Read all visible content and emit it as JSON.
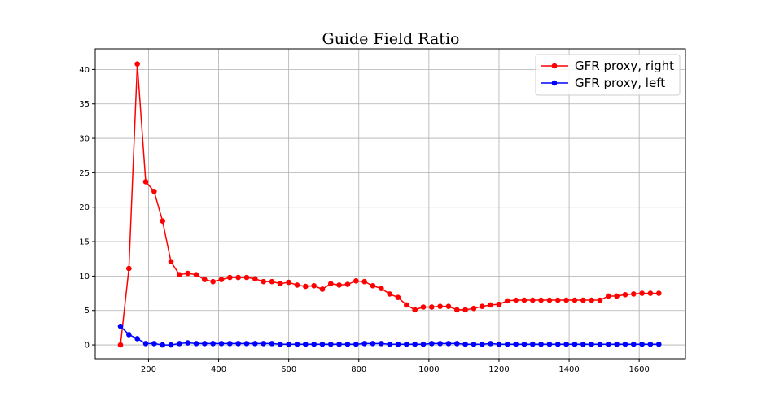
{
  "chart_data": {
    "type": "line",
    "title": "Guide Field Ratio",
    "xlabel": "",
    "ylabel": "",
    "xlim": [
      48,
      1732
    ],
    "ylim": [
      -2,
      43
    ],
    "xticks": [
      200,
      400,
      600,
      800,
      1000,
      1200,
      1400,
      1600
    ],
    "yticks": [
      0,
      5,
      10,
      15,
      20,
      25,
      30,
      35,
      40
    ],
    "grid": true,
    "legend": "top-right",
    "series": [
      {
        "name": "GFR proxy, right",
        "color": "#ff0000",
        "x": [
          120,
          144,
          168,
          192,
          216,
          240,
          264,
          288,
          312,
          336,
          360,
          384,
          408,
          432,
          456,
          480,
          504,
          528,
          552,
          576,
          600,
          624,
          648,
          672,
          696,
          720,
          744,
          768,
          792,
          816,
          840,
          864,
          888,
          912,
          936,
          960,
          984,
          1008,
          1032,
          1056,
          1080,
          1104,
          1128,
          1152,
          1176,
          1200,
          1224,
          1248,
          1272,
          1296,
          1320,
          1344,
          1368,
          1392,
          1416,
          1440,
          1464,
          1488,
          1512,
          1536,
          1560,
          1584,
          1608,
          1632,
          1656
        ],
        "y": [
          0.0,
          11.1,
          40.8,
          23.7,
          22.3,
          18.0,
          12.1,
          10.2,
          10.4,
          10.2,
          9.5,
          9.2,
          9.5,
          9.8,
          9.8,
          9.8,
          9.6,
          9.2,
          9.2,
          8.9,
          9.1,
          8.7,
          8.5,
          8.6,
          8.1,
          8.9,
          8.7,
          8.8,
          9.3,
          9.2,
          8.6,
          8.2,
          7.4,
          6.9,
          5.8,
          5.1,
          5.5,
          5.5,
          5.6,
          5.6,
          5.1,
          5.1,
          5.3,
          5.6,
          5.8,
          5.9,
          6.4,
          6.5,
          6.5,
          6.5,
          6.5,
          6.5,
          6.5,
          6.5,
          6.5,
          6.5,
          6.5,
          6.5,
          7.1,
          7.1,
          7.3,
          7.4,
          7.5,
          7.5,
          7.5
        ]
      },
      {
        "name": "GFR proxy, left",
        "color": "#0000ff",
        "x": [
          120,
          144,
          168,
          192,
          216,
          240,
          264,
          288,
          312,
          336,
          360,
          384,
          408,
          432,
          456,
          480,
          504,
          528,
          552,
          576,
          600,
          624,
          648,
          672,
          696,
          720,
          744,
          768,
          792,
          816,
          840,
          864,
          888,
          912,
          936,
          960,
          984,
          1008,
          1032,
          1056,
          1080,
          1104,
          1128,
          1152,
          1176,
          1200,
          1224,
          1248,
          1272,
          1296,
          1320,
          1344,
          1368,
          1392,
          1416,
          1440,
          1464,
          1488,
          1512,
          1536,
          1560,
          1584,
          1608,
          1632,
          1656
        ],
        "y": [
          2.7,
          1.5,
          0.9,
          0.2,
          0.2,
          0.0,
          0.0,
          0.2,
          0.3,
          0.2,
          0.2,
          0.2,
          0.2,
          0.2,
          0.2,
          0.2,
          0.2,
          0.2,
          0.2,
          0.1,
          0.1,
          0.1,
          0.1,
          0.1,
          0.1,
          0.1,
          0.1,
          0.1,
          0.1,
          0.2,
          0.2,
          0.2,
          0.1,
          0.1,
          0.1,
          0.1,
          0.1,
          0.2,
          0.2,
          0.2,
          0.2,
          0.1,
          0.1,
          0.1,
          0.2,
          0.1,
          0.1,
          0.1,
          0.1,
          0.1,
          0.1,
          0.1,
          0.1,
          0.1,
          0.1,
          0.1,
          0.1,
          0.1,
          0.1,
          0.1,
          0.1,
          0.1,
          0.1,
          0.1,
          0.1
        ]
      }
    ]
  }
}
